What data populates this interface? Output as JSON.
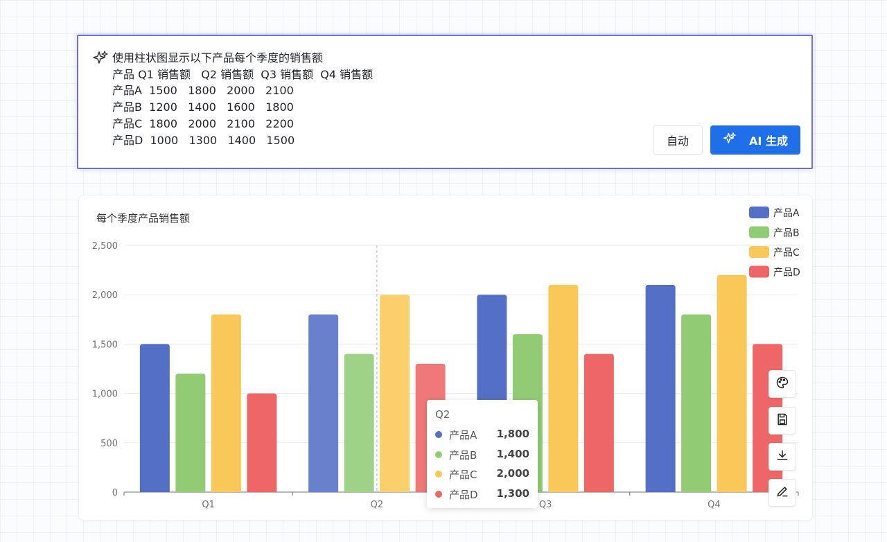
{
  "prompt": {
    "text": "使用柱状图显示以下产品每个季度的销售额\n产品 Q1 销售额   Q2 销售额  Q3 销售额  Q4 销售额\n产品A  1500   1800   2000   2100\n产品B  1200   1400   1600   1800\n产品C  1800   2000   2100   2200\n产品D  1000   1300   1400   1500",
    "auto_button": "自动",
    "generate_button": "AI 生成",
    "accent_color": "#1f6fe8",
    "border_color": "#6b6fd6"
  },
  "chart_data": {
    "type": "bar",
    "title": "每个季度产品销售额",
    "categories": [
      "Q1",
      "Q2",
      "Q3",
      "Q4"
    ],
    "ylim": [
      0,
      2500
    ],
    "yticks": [
      0,
      500,
      1000,
      1500,
      2000,
      2500
    ],
    "ytick_labels": [
      "0",
      "500",
      "1,000",
      "1,500",
      "2,000",
      "2,500"
    ],
    "grid": true,
    "legend_position": "top-right",
    "series": [
      {
        "name": "产品A",
        "color": "#5470c6",
        "values": [
          1500,
          1800,
          2000,
          2100
        ]
      },
      {
        "name": "产品B",
        "color": "#91cc75",
        "values": [
          1200,
          1400,
          1600,
          1800
        ]
      },
      {
        "name": "产品C",
        "color": "#fac858",
        "values": [
          1800,
          2000,
          2100,
          2200
        ]
      },
      {
        "name": "产品D",
        "color": "#ee6666",
        "values": [
          1000,
          1300,
          1400,
          1500
        ]
      }
    ]
  },
  "tooltip": {
    "title": "Q2",
    "rows": [
      {
        "name": "产品A",
        "value": "1,800",
        "color": "#5470c6"
      },
      {
        "name": "产品B",
        "value": "1,400",
        "color": "#91cc75"
      },
      {
        "name": "产品C",
        "value": "2,000",
        "color": "#fac858"
      },
      {
        "name": "产品D",
        "value": "1,300",
        "color": "#ee6666"
      }
    ]
  },
  "toolbar": {
    "icons": [
      "palette-icon",
      "save-icon",
      "download-icon",
      "edit-icon"
    ]
  }
}
